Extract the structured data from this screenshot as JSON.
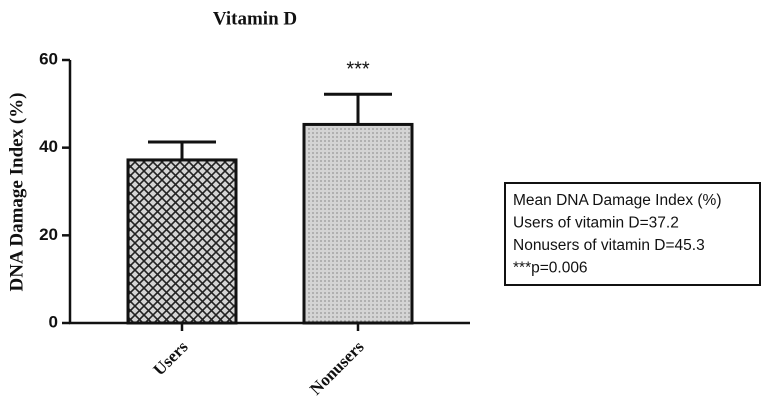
{
  "chart_data": {
    "type": "bar",
    "title": "Vitamin D",
    "y_label": "DNA Damage Index (%)",
    "categories": [
      "Users",
      "Nonusers"
    ],
    "values": [
      37.2,
      45.3
    ],
    "errors": [
      4.1,
      6.9
    ],
    "color": "#d4d4d4",
    "ylim": [
      0,
      60
    ],
    "yticks": [
      0,
      20,
      40,
      60
    ],
    "grid": false,
    "significance": {
      "category": 1,
      "label": "***"
    },
    "note": [
      "Mean DNA Damage Index (%)",
      "Users of vitamin D=37.2",
      "Nonusers of vitamin D=45.3",
      "***p=0.006"
    ]
  }
}
